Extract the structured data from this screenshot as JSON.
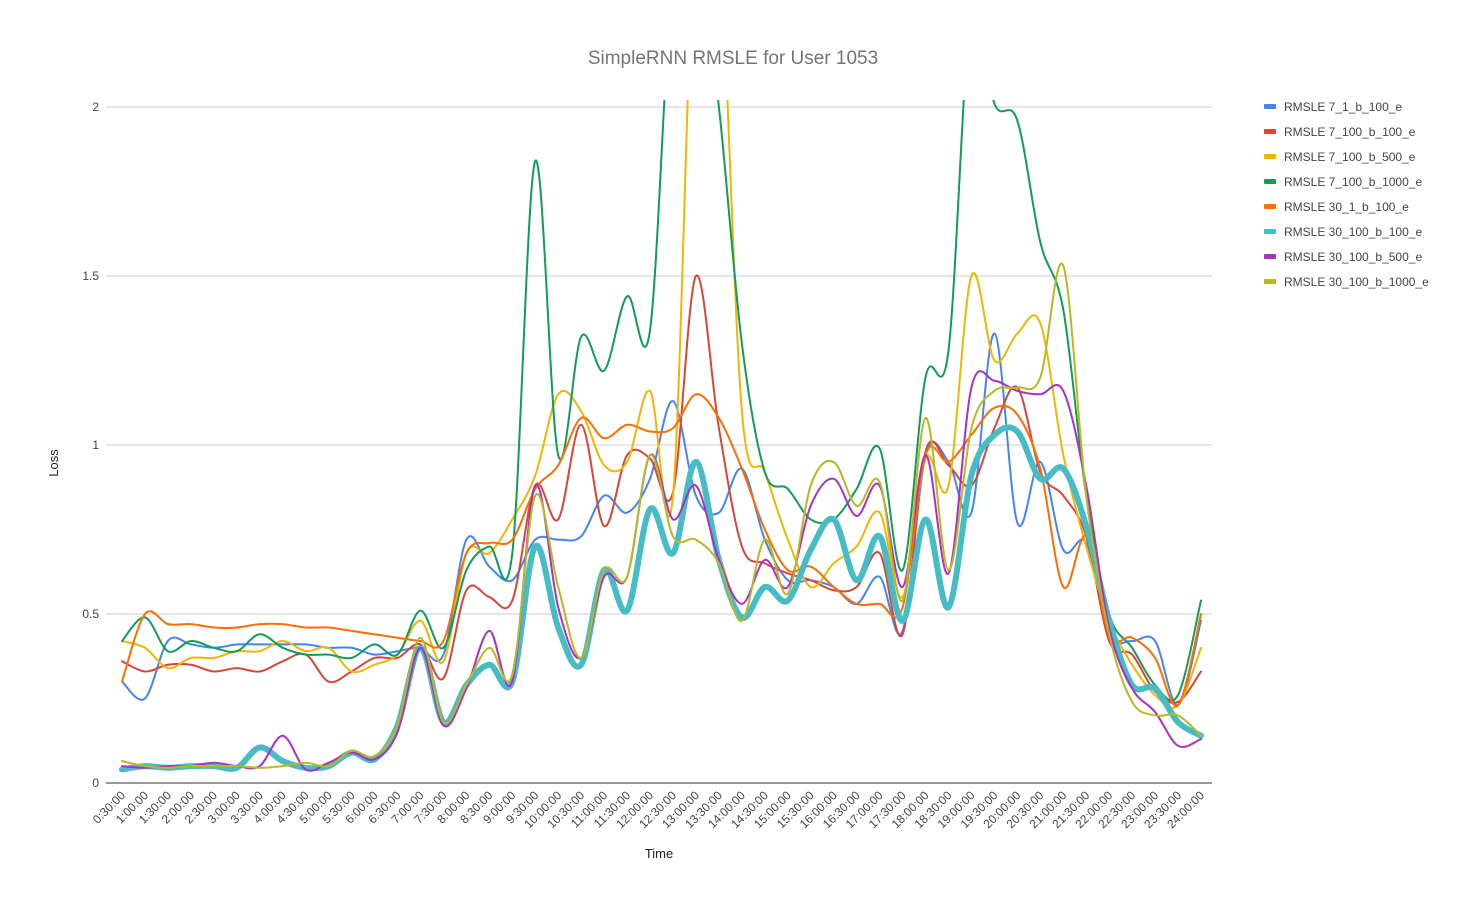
{
  "chart_data": {
    "type": "line",
    "title": "SimpleRNN RMSLE for User 1053",
    "xlabel": "Time",
    "ylabel": "Loss",
    "ylim": [
      0,
      2
    ],
    "yticks": [
      "0",
      "0.5",
      "1",
      "1.5",
      "2"
    ],
    "grid": "horizontal",
    "legend_position": "right",
    "categories": [
      "0:30:00",
      "1:00:00",
      "1:30:00",
      "2:00:00",
      "2:30:00",
      "3:00:00",
      "3:30:00",
      "4:00:00",
      "4:30:00",
      "5:00:00",
      "5:30:00",
      "6:00:00",
      "6:30:00",
      "7:00:00",
      "7:30:00",
      "8:00:00",
      "8:30:00",
      "9:00:00",
      "9:30:00",
      "10:00:00",
      "10:30:00",
      "11:00:00",
      "11:30:00",
      "12:00:00",
      "12:30:00",
      "13:00:00",
      "13:30:00",
      "14:00:00",
      "14:30:00",
      "15:00:00",
      "15:30:00",
      "16:00:00",
      "16:30:00",
      "17:00:00",
      "17:30:00",
      "18:00:00",
      "18:30:00",
      "19:00:00",
      "19:30:00",
      "20:00:00",
      "20:30:00",
      "21:00:00",
      "21:30:00",
      "22:00:00",
      "22:30:00",
      "23:00:00",
      "23:30:00",
      "24:00:00"
    ],
    "series": [
      {
        "name": "RMSLE 7_1_b_100_e",
        "color": "#4285f4",
        "width": 2,
        "values": [
          0.3,
          0.25,
          0.42,
          0.41,
          0.4,
          0.41,
          0.41,
          0.41,
          0.41,
          0.4,
          0.4,
          0.38,
          0.39,
          0.4,
          0.38,
          0.72,
          0.64,
          0.6,
          0.72,
          0.72,
          0.73,
          0.85,
          0.8,
          0.9,
          1.13,
          0.85,
          0.8,
          0.93,
          0.72,
          0.6,
          0.6,
          0.58,
          0.53,
          0.61,
          0.45,
          0.97,
          0.95,
          0.8,
          1.33,
          0.77,
          0.95,
          0.69,
          0.71,
          0.44,
          0.42,
          0.42,
          0.23,
          0.48
        ]
      },
      {
        "name": "RMSLE 7_100_b_100_e",
        "color": "#db4437",
        "width": 2,
        "values": [
          0.36,
          0.33,
          0.35,
          0.35,
          0.33,
          0.34,
          0.33,
          0.36,
          0.38,
          0.3,
          0.33,
          0.37,
          0.37,
          0.41,
          0.31,
          0.57,
          0.55,
          0.54,
          0.88,
          0.78,
          1.06,
          0.76,
          0.97,
          0.96,
          0.86,
          1.5,
          1.05,
          0.7,
          0.65,
          0.62,
          0.6,
          0.57,
          0.58,
          0.68,
          0.44,
          0.98,
          0.94,
          0.88,
          1.05,
          1.17,
          0.92,
          0.85,
          0.73,
          0.42,
          0.38,
          0.27,
          0.24,
          0.33
        ]
      },
      {
        "name": "RMSLE 7_100_b_500_e",
        "color": "#f4b400",
        "width": 2,
        "values": [
          0.42,
          0.4,
          0.34,
          0.37,
          0.37,
          0.39,
          0.39,
          0.42,
          0.39,
          0.4,
          0.33,
          0.35,
          0.38,
          0.48,
          0.36,
          0.68,
          0.68,
          0.78,
          0.91,
          1.15,
          1.1,
          0.94,
          0.95,
          1.16,
          0.85,
          2.6,
          2.5,
          1.1,
          0.92,
          0.72,
          0.58,
          0.65,
          0.7,
          0.8,
          0.55,
          0.96,
          0.88,
          1.5,
          1.25,
          1.33,
          1.36,
          0.97,
          0.7,
          0.48,
          0.35,
          0.26,
          0.23,
          0.4
        ]
      },
      {
        "name": "RMSLE 7_100_b_1000_e",
        "color": "#0f9d58",
        "width": 2,
        "values": [
          0.42,
          0.49,
          0.39,
          0.42,
          0.4,
          0.39,
          0.44,
          0.4,
          0.38,
          0.38,
          0.37,
          0.41,
          0.38,
          0.51,
          0.4,
          0.63,
          0.7,
          0.68,
          1.84,
          0.97,
          1.32,
          1.22,
          1.44,
          1.34,
          2.4,
          2.5,
          2.0,
          1.3,
          0.92,
          0.87,
          0.78,
          0.78,
          0.87,
          0.99,
          0.63,
          1.2,
          1.28,
          2.3,
          2.01,
          1.96,
          1.6,
          1.4,
          0.85,
          0.5,
          0.4,
          0.29,
          0.26,
          0.54
        ]
      },
      {
        "name": "RMSLE 30_1_b_100_e",
        "color": "#ff6d00",
        "width": 2,
        "values": [
          0.3,
          0.5,
          0.47,
          0.47,
          0.46,
          0.46,
          0.47,
          0.47,
          0.46,
          0.46,
          0.45,
          0.44,
          0.43,
          0.42,
          0.42,
          0.68,
          0.71,
          0.72,
          0.87,
          0.94,
          1.08,
          1.02,
          1.06,
          1.04,
          1.05,
          1.15,
          1.08,
          0.93,
          0.75,
          0.63,
          0.64,
          0.58,
          0.53,
          0.53,
          0.52,
          0.97,
          0.95,
          1.03,
          1.11,
          1.09,
          0.93,
          0.58,
          0.73,
          0.44,
          0.43,
          0.37,
          0.23,
          0.5
        ]
      },
      {
        "name": "RMSLE 30_100_b_100_e",
        "color": "#46bdc6",
        "width": 6,
        "values": [
          0.04,
          0.05,
          0.045,
          0.05,
          0.05,
          0.045,
          0.105,
          0.065,
          0.045,
          0.05,
          0.09,
          0.07,
          0.17,
          0.4,
          0.18,
          0.29,
          0.35,
          0.3,
          0.7,
          0.46,
          0.35,
          0.63,
          0.51,
          0.81,
          0.68,
          0.95,
          0.66,
          0.49,
          0.58,
          0.54,
          0.69,
          0.78,
          0.6,
          0.73,
          0.48,
          0.78,
          0.52,
          0.91,
          1.03,
          1.04,
          0.9,
          0.93,
          0.76,
          0.48,
          0.29,
          0.28,
          0.18,
          0.14
        ]
      },
      {
        "name": "RMSLE 30_100_b_500_e",
        "color": "#ab30c4",
        "width": 2,
        "values": [
          0.05,
          0.045,
          0.05,
          0.05,
          0.06,
          0.05,
          0.05,
          0.14,
          0.04,
          0.06,
          0.09,
          0.07,
          0.15,
          0.4,
          0.17,
          0.28,
          0.45,
          0.3,
          0.88,
          0.52,
          0.37,
          0.61,
          0.61,
          0.97,
          0.78,
          0.88,
          0.66,
          0.53,
          0.66,
          0.58,
          0.82,
          0.9,
          0.79,
          0.88,
          0.58,
          0.97,
          0.62,
          1.17,
          1.19,
          1.16,
          1.15,
          1.16,
          0.88,
          0.46,
          0.28,
          0.21,
          0.11,
          0.13
        ]
      },
      {
        "name": "RMSLE 30_100_b_1000_e",
        "color": "#b8b824",
        "width": 2,
        "values": [
          0.065,
          0.05,
          0.045,
          0.05,
          0.05,
          0.05,
          0.045,
          0.05,
          0.06,
          0.05,
          0.095,
          0.08,
          0.17,
          0.43,
          0.18,
          0.29,
          0.4,
          0.32,
          0.85,
          0.58,
          0.37,
          0.63,
          0.61,
          0.97,
          0.73,
          0.72,
          0.65,
          0.48,
          0.72,
          0.56,
          0.88,
          0.95,
          0.82,
          0.89,
          0.54,
          1.08,
          0.63,
          1.05,
          1.16,
          1.17,
          1.2,
          1.53,
          0.85,
          0.44,
          0.24,
          0.2,
          0.2,
          0.14
        ]
      }
    ]
  }
}
